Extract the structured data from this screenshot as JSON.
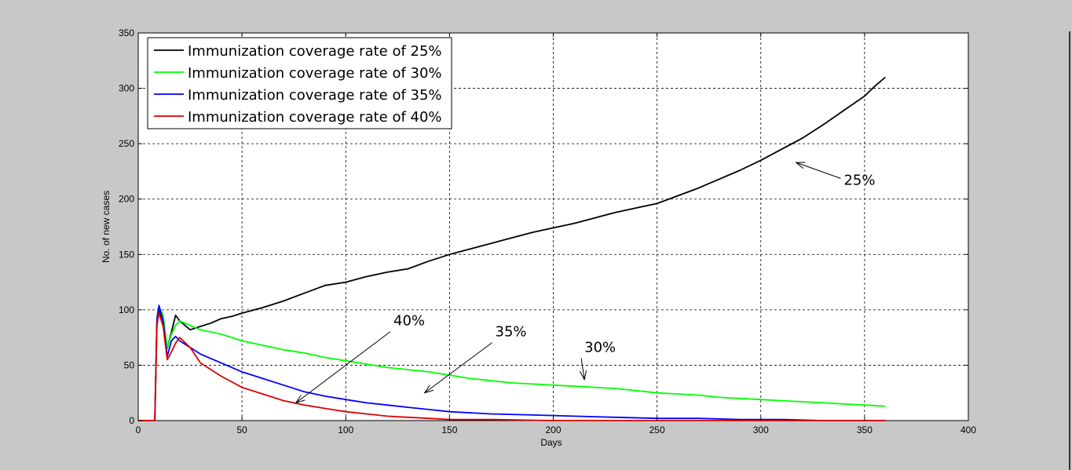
{
  "chart_data": {
    "type": "line",
    "title": "",
    "xlabel": "Days",
    "ylabel": "No. of new cases",
    "xlim": [
      0,
      400
    ],
    "ylim": [
      0,
      350
    ],
    "xticks": [
      0,
      50,
      100,
      150,
      200,
      250,
      300,
      350,
      400
    ],
    "yticks": [
      0,
      50,
      100,
      150,
      200,
      250,
      300,
      350
    ],
    "grid": true,
    "legend_position": "top-left",
    "series": [
      {
        "name": "Immunization coverage rate of 25%",
        "color": "#000000",
        "x": [
          0,
          8,
          9,
          10,
          12,
          14,
          16,
          18,
          20,
          25,
          30,
          35,
          40,
          45,
          50,
          60,
          70,
          80,
          90,
          100,
          110,
          120,
          130,
          140,
          150,
          160,
          170,
          180,
          190,
          200,
          210,
          220,
          230,
          240,
          250,
          260,
          270,
          280,
          290,
          300,
          310,
          320,
          330,
          340,
          350,
          355,
          360
        ],
        "y": [
          0,
          0,
          85,
          100,
          90,
          65,
          80,
          95,
          90,
          82,
          85,
          88,
          92,
          94,
          97,
          102,
          108,
          115,
          122,
          125,
          130,
          134,
          137,
          144,
          150,
          155,
          160,
          165,
          170,
          174,
          178,
          183,
          188,
          192,
          196,
          203,
          210,
          218,
          226,
          235,
          245,
          255,
          267,
          280,
          293,
          302,
          310
        ]
      },
      {
        "name": "Immunization coverage rate of 30%",
        "color": "#00ff00",
        "x": [
          0,
          8,
          9,
          10,
          12,
          14,
          16,
          18,
          20,
          30,
          40,
          50,
          60,
          70,
          80,
          90,
          100,
          110,
          120,
          130,
          140,
          150,
          160,
          170,
          180,
          190,
          200,
          210,
          220,
          230,
          240,
          250,
          260,
          270,
          280,
          290,
          300,
          310,
          320,
          330,
          340,
          350,
          360
        ],
        "y": [
          0,
          0,
          90,
          103,
          95,
          65,
          78,
          86,
          90,
          82,
          78,
          72,
          68,
          64,
          61,
          57,
          54,
          51,
          48,
          46,
          44,
          41,
          38,
          36,
          34,
          33,
          32,
          31,
          30,
          29,
          27,
          25,
          24,
          23,
          21,
          20,
          19,
          18,
          17,
          16,
          15,
          14,
          13
        ]
      },
      {
        "name": "Immunization coverage rate of 35%",
        "color": "#0000ff",
        "x": [
          0,
          8,
          9,
          10,
          12,
          14,
          16,
          18,
          20,
          30,
          40,
          50,
          60,
          70,
          80,
          90,
          100,
          110,
          120,
          130,
          140,
          150,
          170,
          190,
          210,
          230,
          250,
          270,
          290,
          310,
          330,
          360
        ],
        "y": [
          0,
          0,
          92,
          104,
          90,
          58,
          72,
          76,
          72,
          60,
          52,
          44,
          38,
          32,
          26,
          22,
          19,
          16,
          14,
          12,
          10,
          8,
          6,
          5,
          4,
          3,
          2,
          2,
          1,
          1,
          0,
          0
        ]
      },
      {
        "name": "Immunization coverage rate of 40%",
        "color": "#dd0000",
        "x": [
          0,
          8,
          9,
          10,
          12,
          14,
          16,
          18,
          20,
          25,
          30,
          40,
          50,
          60,
          70,
          80,
          90,
          100,
          110,
          120,
          130,
          140,
          150,
          170,
          200,
          250,
          300,
          360
        ],
        "y": [
          0,
          0,
          88,
          97,
          85,
          55,
          62,
          70,
          75,
          66,
          52,
          40,
          30,
          24,
          18,
          14,
          11,
          8,
          6,
          4,
          3,
          2,
          1,
          1,
          0,
          0,
          0,
          0
        ]
      }
    ],
    "annotations": [
      {
        "text": "25%",
        "text_x": 340,
        "text_y": 213,
        "arrow_to": [
          317,
          233
        ]
      },
      {
        "text": "30%",
        "text_x": 215,
        "text_y": 62,
        "arrow_to": [
          215,
          37
        ]
      },
      {
        "text": "35%",
        "text_x": 172,
        "text_y": 76,
        "arrow_to": [
          138,
          25
        ]
      },
      {
        "text": "40%",
        "text_x": 123,
        "text_y": 86,
        "arrow_to": [
          76,
          16
        ]
      }
    ]
  }
}
